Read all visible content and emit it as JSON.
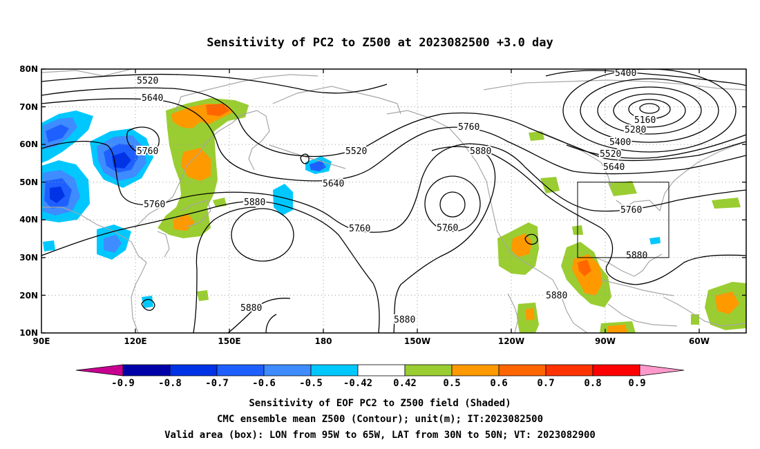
{
  "title": "Sensitivity of PC2 to Z500 at 2023082500 +3.0 day",
  "map": {
    "lat_labels": [
      "80N",
      "70N",
      "60N",
      "50N",
      "40N",
      "30N",
      "20N",
      "10N"
    ],
    "lon_labels": [
      "90E",
      "120E",
      "150E",
      "180",
      "150W",
      "120W",
      "90W",
      "60W"
    ],
    "lon_range": [
      90,
      315
    ],
    "lat_range": [
      10,
      80
    ],
    "valid_box": {
      "lon": [
        265,
        295
      ],
      "lat": [
        30,
        50
      ]
    },
    "contour_labels": [
      "5520",
      "5640",
      "5760",
      "5520",
      "5640",
      "5760",
      "5880",
      "5760",
      "5760",
      "5760",
      "5880",
      "5400",
      "5160",
      "5280",
      "5400",
      "5520",
      "5640",
      "5760",
      "5880",
      "5880",
      "5880",
      "5880"
    ]
  },
  "colorbar": {
    "labels": [
      "-0.9",
      "-0.8",
      "-0.7",
      "-0.6",
      "-0.5",
      "-0.42",
      "0.42",
      "0.5",
      "0.6",
      "0.7",
      "0.8",
      "0.9"
    ],
    "colors": [
      "#0000a8",
      "#0033e6",
      "#1e60ff",
      "#3e8cff",
      "#00c8ff",
      "#ffffff",
      "#9acd32",
      "#ff9900",
      "#ff6600",
      "#ff3300",
      "#ff0000"
    ],
    "low_extend_color": "#c80090",
    "high_extend_color": "#ff99cc"
  },
  "caption": [
    "Sensitivity of EOF PC2 to Z500 field (Shaded)",
    "CMC ensemble mean Z500 (Contour); unit(m); IT:2023082500",
    "Valid area (box): LON from 95W to 65W, LAT from 30N to 50N; VT: 2023082900"
  ]
}
